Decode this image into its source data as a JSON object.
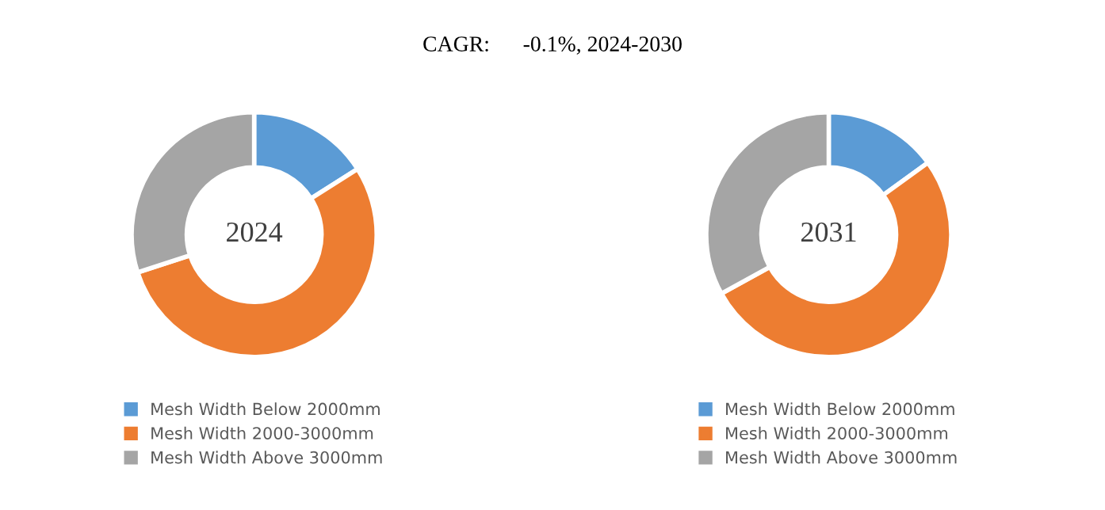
{
  "chart_data": [
    {
      "type": "donut",
      "title": "CAGR:      -0.1%, 2024-2030",
      "annotations": [
        "2024"
      ],
      "categories": [
        "Mesh Width Below 2000mm",
        "Mesh Width 2000-3000mm",
        "Mesh Width Above 3000mm"
      ],
      "values": [
        16,
        54,
        30
      ],
      "colors": [
        "#5b9bd5",
        "#ed7d31",
        "#a5a5a5"
      ],
      "legend": "bottom"
    },
    {
      "type": "donut",
      "annotations": [
        "2031"
      ],
      "categories": [
        "Mesh Width Below 2000mm",
        "Mesh Width 2000-3000mm",
        "Mesh Width Above 3000mm"
      ],
      "values": [
        15,
        52,
        33
      ],
      "colors": [
        "#5b9bd5",
        "#ed7d31",
        "#a5a5a5"
      ],
      "legend": "bottom"
    }
  ]
}
